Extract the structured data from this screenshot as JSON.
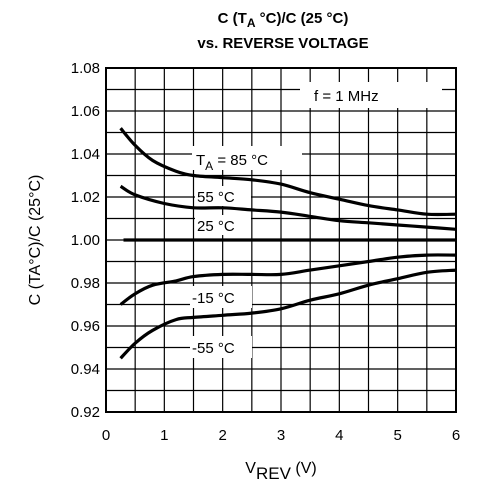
{
  "chart_data": {
    "type": "line",
    "title_line1": {
      "main": "C (T",
      "sub": "A",
      "rest": " °C)/C (25 °C)"
    },
    "title_line2": "vs. REVERSE VOLTAGE",
    "xlabel": {
      "main": "V",
      "sub": "REV",
      "rest": " (V)"
    },
    "ylabel": "C (TA°C)/C (25°C)",
    "xlim": [
      0,
      6
    ],
    "ylim": [
      0.92,
      1.08
    ],
    "x_ticks": [
      "0",
      "1",
      "2",
      "3",
      "4",
      "5",
      "6"
    ],
    "y_ticks": [
      "0.92",
      "0.94",
      "0.96",
      "0.98",
      "1.00",
      "1.02",
      "1.04",
      "1.06",
      "1.08"
    ],
    "grid": true,
    "annotations": {
      "freq": "f = 1 MHz",
      "t85": {
        "main": "T",
        "sub": "A",
        "rest": " = 85 °C"
      },
      "t55": "55 °C",
      "t25": "25 °C",
      "tm15": "-15 °C",
      "tm55": "-55 °C"
    },
    "series": [
      {
        "x": [
          0.25,
          0.5,
          0.8,
          1.2,
          1.5,
          2.0,
          2.5,
          3.0,
          3.5,
          4.0,
          4.5,
          5.0,
          5.5,
          6.0
        ],
        "y": [
          1.052,
          1.044,
          1.037,
          1.032,
          1.03,
          1.029,
          1.028,
          1.026,
          1.022,
          1.019,
          1.016,
          1.014,
          1.012,
          1.012
        ]
      },
      {
        "x": [
          0.25,
          0.5,
          1.0,
          1.5,
          2.0,
          2.5,
          3.0,
          3.5,
          4.0,
          4.5,
          5.0,
          5.5,
          6.0
        ],
        "y": [
          1.025,
          1.021,
          1.017,
          1.015,
          1.015,
          1.014,
          1.013,
          1.011,
          1.009,
          1.008,
          1.007,
          1.006,
          1.005
        ]
      },
      {
        "x": [
          0.3,
          6.0
        ],
        "y": [
          1.0,
          1.0
        ]
      },
      {
        "x": [
          0.25,
          0.5,
          0.8,
          1.2,
          1.5,
          2.0,
          2.5,
          3.0,
          3.5,
          4.0,
          4.5,
          5.0,
          5.5,
          6.0
        ],
        "y": [
          0.97,
          0.975,
          0.979,
          0.981,
          0.983,
          0.984,
          0.984,
          0.984,
          0.986,
          0.988,
          0.99,
          0.992,
          0.993,
          0.993
        ]
      },
      {
        "x": [
          0.25,
          0.5,
          0.8,
          1.2,
          1.5,
          2.0,
          2.5,
          3.0,
          3.5,
          4.0,
          4.5,
          5.0,
          5.5,
          6.0
        ],
        "y": [
          0.945,
          0.952,
          0.958,
          0.963,
          0.964,
          0.965,
          0.966,
          0.968,
          0.972,
          0.975,
          0.979,
          0.982,
          0.985,
          0.986
        ]
      }
    ]
  }
}
